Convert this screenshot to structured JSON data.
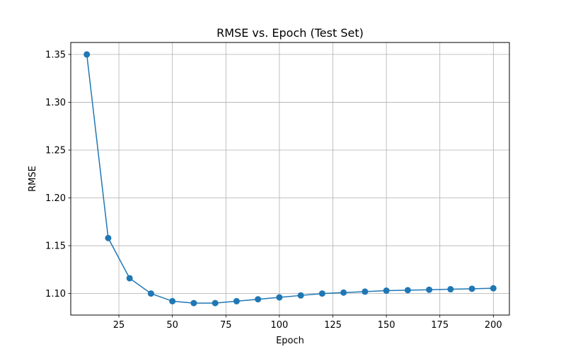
{
  "chart_data": {
    "type": "line",
    "title": "RMSE vs. Epoch (Test Set)",
    "xlabel": "Epoch",
    "ylabel": "RMSE",
    "xlim": [
      2.5,
      207.5
    ],
    "ylim": [
      1.0775,
      1.3625
    ],
    "xticks": [
      25,
      50,
      75,
      100,
      125,
      150,
      175,
      200
    ],
    "yticks": [
      1.1,
      1.15,
      1.2,
      1.25,
      1.3,
      1.35
    ],
    "ytick_labels": [
      "1.10",
      "1.15",
      "1.20",
      "1.25",
      "1.30",
      "1.35"
    ],
    "grid": true,
    "marker": "circle",
    "series": [
      {
        "color": "#1f77b4",
        "x": [
          10,
          20,
          30,
          40,
          50,
          60,
          70,
          80,
          90,
          100,
          110,
          120,
          130,
          140,
          150,
          160,
          170,
          180,
          190,
          200
        ],
        "y": [
          1.35,
          1.158,
          1.116,
          1.1,
          1.092,
          1.09,
          1.09,
          1.092,
          1.094,
          1.096,
          1.098,
          1.1,
          1.101,
          1.102,
          1.103,
          1.1035,
          1.104,
          1.1045,
          1.105,
          1.1055
        ]
      }
    ]
  }
}
